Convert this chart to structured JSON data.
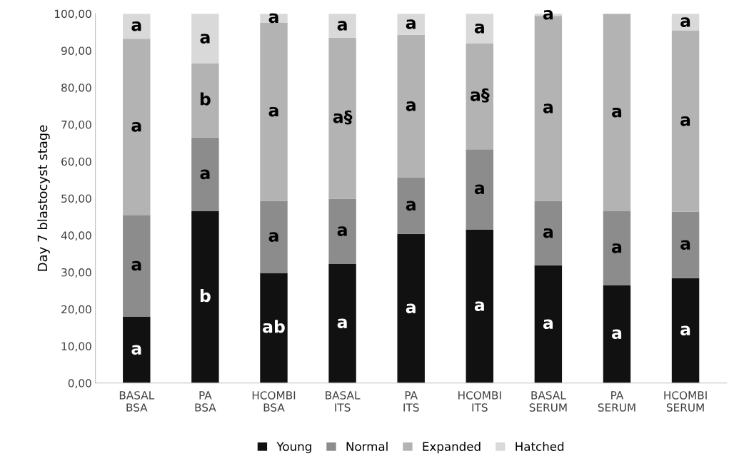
{
  "chart_data": {
    "type": "bar",
    "stacked": true,
    "ylabel": "Day 7 blastocyst stage",
    "categories": [
      "BASAL\nBSA",
      "PA\nBSA",
      "HCOMBI\nBSA",
      "BASAL\nITS",
      "PA\nITS",
      "HCOMBI\nITS",
      "BASAL\nSERUM",
      "PA\nSERUM",
      "HCOMBI\nSERUM"
    ],
    "series": [
      {
        "name": "Young",
        "color": "#111111",
        "values": [
          18.0,
          46.5,
          29.8,
          32.3,
          40.4,
          41.6,
          31.9,
          26.5,
          28.4
        ],
        "value_labels": [
          "a",
          "b",
          "ab",
          "a",
          "a",
          "a",
          "a",
          "a",
          "a"
        ]
      },
      {
        "name": "Normal",
        "color": "#8c8c8c",
        "values": [
          27.5,
          20.0,
          19.5,
          17.6,
          15.2,
          21.7,
          17.4,
          20.0,
          18.0
        ],
        "value_labels": [
          "a",
          "a",
          "a",
          "a",
          "a",
          "a",
          "a",
          "a",
          "a"
        ]
      },
      {
        "name": "Expanded",
        "color": "#b3b3b3",
        "values": [
          47.7,
          20.0,
          48.3,
          43.6,
          38.7,
          28.7,
          50.1,
          53.5,
          49.0
        ],
        "value_labels": [
          "a",
          "b",
          "a",
          "a§",
          "a",
          "a§",
          "a",
          "a",
          "a"
        ]
      },
      {
        "name": "Hatched",
        "color": "#d9d9d9",
        "values": [
          6.8,
          13.5,
          2.4,
          6.5,
          5.7,
          8.0,
          0.6,
          0.0,
          4.6
        ],
        "value_labels": [
          "a",
          "a",
          "a",
          "a",
          "a",
          "a",
          "a",
          null,
          "a"
        ]
      }
    ],
    "ylim": [
      0,
      100
    ],
    "yticks": [
      {
        "value": 0,
        "label": "0,00"
      },
      {
        "value": 10,
        "label": "10,00"
      },
      {
        "value": 20,
        "label": "20,00"
      },
      {
        "value": 30,
        "label": "30,00"
      },
      {
        "value": 40,
        "label": "40,00"
      },
      {
        "value": 50,
        "label": "50,00"
      },
      {
        "value": 60,
        "label": "60,00"
      },
      {
        "value": 70,
        "label": "70,00"
      },
      {
        "value": 80,
        "label": "80,00"
      },
      {
        "value": 90,
        "label": "90,00"
      },
      {
        "value": 100,
        "label": "100,00"
      }
    ],
    "grid": false,
    "legend": "bottom"
  }
}
